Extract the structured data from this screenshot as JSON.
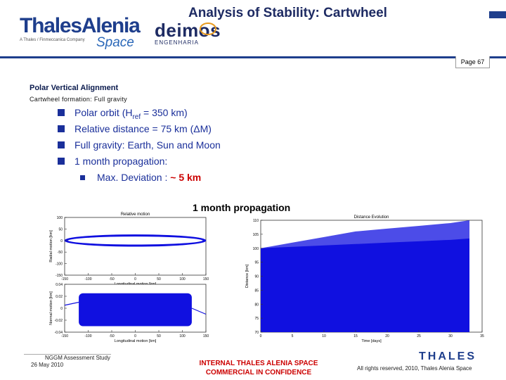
{
  "header": {
    "title": "Analysis of Stability: Cartwheel",
    "logo_thales": {
      "main": "ThalesAlenia",
      "tagline": "A Thales / Finmeccanica Company",
      "space": "Space"
    },
    "logo_deimos": {
      "name": "deimos",
      "sub": "ENGENHARIA"
    },
    "page_label": "Page 67"
  },
  "content": {
    "section_title": "Polar Vertical Alignment",
    "subtitle": "Cartwheel formation: Full gravity",
    "bullets": [
      {
        "text_pre": "Polar orbit (H",
        "sub": "ref",
        "text_post": " =  350 km)"
      },
      {
        "text": "Relative distance = 75 km (ΔM)"
      },
      {
        "text": "Full gravity: Earth, Sun and Moon"
      },
      {
        "text": "1 month propagation:"
      }
    ],
    "sub_bullet": {
      "text": "Max. Deviation : ",
      "value": "~ 5 km"
    },
    "figure_caption": "1 month propagation"
  },
  "chart_data": [
    {
      "type": "scatter",
      "title": "Relative motion",
      "xlabel": "Longitudinal motion [km]",
      "ylabel": "Radial motion [km]",
      "xlim": [
        -150,
        150
      ],
      "ylim": [
        -150,
        100
      ],
      "xticks": [
        "-150",
        "-100",
        "-50",
        "0",
        "50",
        "100",
        "150"
      ],
      "yticks": [
        "100",
        "50",
        "0",
        "-50",
        "-100",
        "-150"
      ],
      "series": [
        {
          "shape": "ellipse",
          "center": [
            0,
            0
          ],
          "semi_axes": [
            150,
            25
          ]
        }
      ]
    },
    {
      "type": "scatter",
      "title": "",
      "xlabel": "Longitudinal motion [km]",
      "ylabel": "Normal motion [km]",
      "xlim": [
        -150,
        150
      ],
      "ylim": [
        -0.04,
        0.04
      ],
      "xticks": [
        "-150",
        "-100",
        "-50",
        "0",
        "50",
        "100",
        "150"
      ],
      "yticks": [
        "0.04",
        "0.02",
        "0",
        "-0.02",
        "-0.04"
      ],
      "series": [
        {
          "shape": "band",
          "x_range": [
            -120,
            120
          ],
          "y_range": [
            -0.03,
            0.025
          ]
        }
      ]
    },
    {
      "type": "area",
      "title": "Distance Evolution",
      "xlabel": "Time [days]",
      "ylabel": "Distance [km]",
      "xlim": [
        0,
        35
      ],
      "ylim": [
        70,
        110
      ],
      "xticks": [
        "0",
        "5",
        "10",
        "15",
        "20",
        "25",
        "30",
        "35"
      ],
      "yticks": [
        "110",
        "105",
        "100",
        "95",
        "90",
        "85",
        "80",
        "75",
        "70"
      ],
      "series": [
        {
          "x": [
            0,
            5,
            10,
            15,
            20,
            25,
            30,
            33
          ],
          "upper": [
            100,
            100.5,
            101,
            101.5,
            102,
            102.5,
            103,
            103.5
          ],
          "lower": [
            70,
            70,
            70,
            70,
            70,
            70,
            70,
            70
          ],
          "max_upper": [
            100,
            102,
            104,
            106,
            107,
            108,
            109,
            110
          ],
          "mid_lower": [
            100,
            99.5,
            99,
            98.5,
            98,
            97.5,
            97,
            96.5
          ]
        }
      ]
    }
  ],
  "footer": {
    "study": "NGGM Assessment Study",
    "date": "26 May 2010",
    "classification_line1": "INTERNAL THALES ALENIA SPACE",
    "classification_line2": "COMMERCIAL IN CONFIDENCE",
    "brand": "THALES",
    "rights": "All rights reserved, 2010, Thales Alenia Space"
  },
  "colors": {
    "navy": "#1e3e8c",
    "bullet": "#1a2f9a",
    "red": "#cc0000",
    "plot_blue": "#1010e0"
  }
}
